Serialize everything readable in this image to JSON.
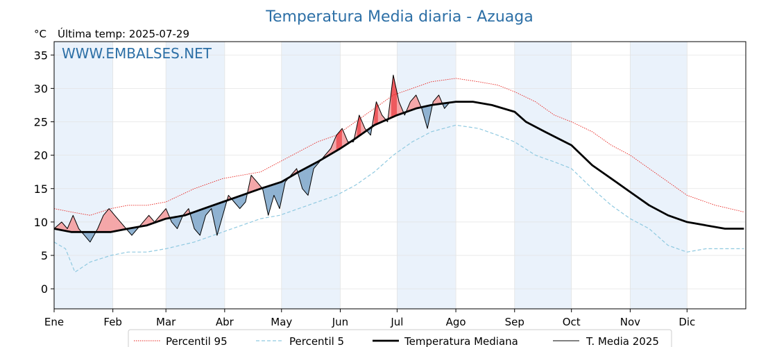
{
  "chart_data": {
    "type": "line",
    "title": "Temperatura Media diaria - Azuaga",
    "unit": "°C",
    "last_temp_label": "Última temp: 2025-07-29",
    "watermark": "WWW.EMBALSES.NET",
    "ylim": [
      -3,
      37
    ],
    "yticks": [
      0,
      5,
      10,
      15,
      20,
      25,
      30,
      35
    ],
    "months": [
      "Ene",
      "Feb",
      "Mar",
      "Abr",
      "May",
      "Jun",
      "Jul",
      "Ago",
      "Sep",
      "Oct",
      "Nov",
      "Dic"
    ],
    "month_start_days": [
      1,
      32,
      60,
      91,
      121,
      152,
      182,
      213,
      244,
      274,
      305,
      335
    ],
    "legend_position": "bottom-center",
    "colors": {
      "p95": "#e8231e",
      "p5": "#8fc9e0",
      "median": "#000000",
      "t2025": "#000000",
      "above": "#f4a7a9",
      "above_strong": "#ee5a5e",
      "below": "#8fb2d1",
      "shade": "#eaf2fb",
      "title": "#2c6fa6"
    },
    "series": [
      {
        "name": "Percentil 95",
        "style": "dotted",
        "points": [
          [
            1,
            12
          ],
          [
            10,
            11.5
          ],
          [
            20,
            11
          ],
          [
            31,
            12
          ],
          [
            40,
            12.5
          ],
          [
            50,
            12.5
          ],
          [
            60,
            13
          ],
          [
            75,
            15
          ],
          [
            90,
            16.5
          ],
          [
            100,
            17
          ],
          [
            110,
            17.5
          ],
          [
            120,
            19
          ],
          [
            130,
            20.5
          ],
          [
            140,
            22
          ],
          [
            150,
            23
          ],
          [
            160,
            25
          ],
          [
            170,
            27
          ],
          [
            180,
            29
          ],
          [
            190,
            30
          ],
          [
            200,
            31
          ],
          [
            213,
            31.5
          ],
          [
            225,
            31
          ],
          [
            235,
            30.5
          ],
          [
            244,
            29.5
          ],
          [
            255,
            28
          ],
          [
            265,
            26
          ],
          [
            274,
            25
          ],
          [
            285,
            23.5
          ],
          [
            295,
            21.5
          ],
          [
            305,
            20
          ],
          [
            315,
            18
          ],
          [
            325,
            16
          ],
          [
            335,
            14
          ],
          [
            350,
            12.5
          ],
          [
            365,
            11.5
          ]
        ]
      },
      {
        "name": "Percentil 5",
        "style": "dashed",
        "points": [
          [
            1,
            7
          ],
          [
            7,
            6
          ],
          [
            12,
            2.5
          ],
          [
            20,
            4
          ],
          [
            31,
            5
          ],
          [
            40,
            5.5
          ],
          [
            50,
            5.5
          ],
          [
            60,
            6
          ],
          [
            75,
            7
          ],
          [
            90,
            8.5
          ],
          [
            100,
            9.5
          ],
          [
            110,
            10.5
          ],
          [
            120,
            11
          ],
          [
            130,
            12
          ],
          [
            140,
            13
          ],
          [
            150,
            14
          ],
          [
            160,
            15.5
          ],
          [
            170,
            17.5
          ],
          [
            180,
            20
          ],
          [
            190,
            22
          ],
          [
            200,
            23.5
          ],
          [
            213,
            24.5
          ],
          [
            225,
            24
          ],
          [
            235,
            23
          ],
          [
            244,
            22
          ],
          [
            255,
            20
          ],
          [
            265,
            19
          ],
          [
            274,
            18
          ],
          [
            285,
            15
          ],
          [
            295,
            12.5
          ],
          [
            305,
            10.5
          ],
          [
            315,
            9
          ],
          [
            325,
            6.5
          ],
          [
            335,
            5.5
          ],
          [
            345,
            6
          ],
          [
            365,
            6
          ]
        ]
      },
      {
        "name": "Temperatura Mediana",
        "style": "solid-thick",
        "points": [
          [
            1,
            9
          ],
          [
            10,
            8.5
          ],
          [
            20,
            8.5
          ],
          [
            31,
            8.5
          ],
          [
            40,
            9
          ],
          [
            50,
            9.5
          ],
          [
            60,
            10.5
          ],
          [
            70,
            11
          ],
          [
            80,
            12
          ],
          [
            90,
            13
          ],
          [
            100,
            14
          ],
          [
            110,
            15
          ],
          [
            121,
            16
          ],
          [
            130,
            17.5
          ],
          [
            140,
            19
          ],
          [
            152,
            21
          ],
          [
            160,
            22.5
          ],
          [
            170,
            24.5
          ],
          [
            182,
            26
          ],
          [
            192,
            27
          ],
          [
            200,
            27.5
          ],
          [
            213,
            28
          ],
          [
            222,
            28
          ],
          [
            232,
            27.5
          ],
          [
            244,
            26.5
          ],
          [
            250,
            25
          ],
          [
            260,
            23.5
          ],
          [
            274,
            21.5
          ],
          [
            285,
            18.5
          ],
          [
            295,
            16.5
          ],
          [
            305,
            14.5
          ],
          [
            315,
            12.5
          ],
          [
            325,
            11
          ],
          [
            335,
            10
          ],
          [
            345,
            9.5
          ],
          [
            355,
            9
          ],
          [
            365,
            9
          ]
        ]
      },
      {
        "name": "T. Media 2025",
        "style": "solid-thin",
        "points": [
          [
            1,
            9
          ],
          [
            5,
            10
          ],
          [
            8,
            9
          ],
          [
            11,
            11
          ],
          [
            14,
            9
          ],
          [
            17,
            8
          ],
          [
            20,
            7
          ],
          [
            24,
            9
          ],
          [
            27,
            11
          ],
          [
            30,
            12
          ],
          [
            33,
            11
          ],
          [
            36,
            10
          ],
          [
            39,
            9
          ],
          [
            42,
            8
          ],
          [
            45,
            9
          ],
          [
            48,
            10
          ],
          [
            51,
            11
          ],
          [
            54,
            10
          ],
          [
            57,
            11
          ],
          [
            60,
            12
          ],
          [
            63,
            10
          ],
          [
            66,
            9
          ],
          [
            69,
            11
          ],
          [
            72,
            12
          ],
          [
            75,
            9
          ],
          [
            78,
            8
          ],
          [
            81,
            11
          ],
          [
            84,
            12
          ],
          [
            87,
            8
          ],
          [
            90,
            11
          ],
          [
            93,
            14
          ],
          [
            96,
            13
          ],
          [
            99,
            12
          ],
          [
            102,
            13
          ],
          [
            105,
            17
          ],
          [
            108,
            16
          ],
          [
            111,
            15
          ],
          [
            114,
            11
          ],
          [
            117,
            14
          ],
          [
            120,
            12
          ],
          [
            123,
            16
          ],
          [
            126,
            17
          ],
          [
            129,
            18
          ],
          [
            132,
            15
          ],
          [
            135,
            14
          ],
          [
            138,
            18
          ],
          [
            141,
            19
          ],
          [
            144,
            20
          ],
          [
            147,
            21
          ],
          [
            150,
            23
          ],
          [
            153,
            24
          ],
          [
            156,
            22
          ],
          [
            159,
            22
          ],
          [
            162,
            26
          ],
          [
            165,
            24
          ],
          [
            168,
            23
          ],
          [
            171,
            28
          ],
          [
            174,
            26
          ],
          [
            177,
            25
          ],
          [
            180,
            32
          ],
          [
            183,
            28
          ],
          [
            186,
            26
          ],
          [
            189,
            28
          ],
          [
            192,
            29
          ],
          [
            195,
            27
          ],
          [
            198,
            24
          ],
          [
            201,
            28
          ],
          [
            204,
            29
          ],
          [
            207,
            27
          ],
          [
            210,
            28
          ]
        ]
      }
    ]
  }
}
